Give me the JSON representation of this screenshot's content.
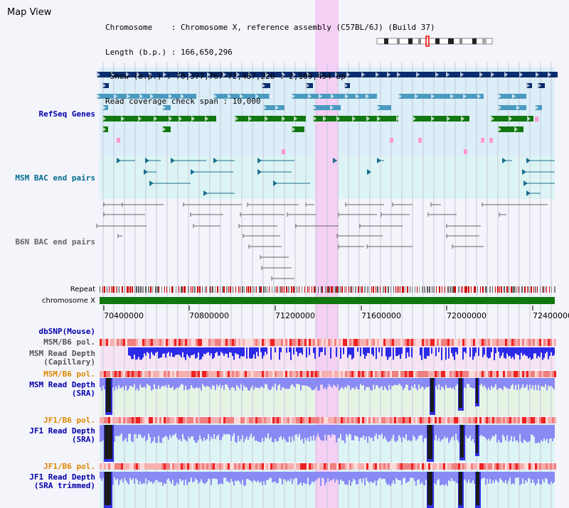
{
  "panel": {
    "title": "Map View"
  },
  "info": {
    "chromosome_line": "Chromosome    : Chromosome X, reference assembly (C57BL/6J) (Build 37)",
    "length_line": "Length (b.p.) : 166,650,296",
    "show_line": " Show (b.p.) : 70,377,767-72,487,220 : 2,109,454 bp",
    "coverage_line": "Read coverage check span : 10,000"
  },
  "tracks": {
    "refseq": "RefSeq Genes",
    "msm_bac": "MSM BAC end pairs",
    "b6n_bac": "B6N BAC end pairs",
    "repeat": "Repeat",
    "chromosome": "chromosome X",
    "dbsnp": "dbSNP(Mouse)",
    "msm_b6_pol_1": "MSM/B6 pol.",
    "msm_read_depth_cap_1": "MSM Read Depth",
    "msm_read_depth_cap_2": "(Capillary)",
    "msm_b6_pol_2": "MSM/B6 pol.",
    "msm_read_depth_sra_1": "MSM Read Depth",
    "msm_read_depth_sra_2": "(SRA)",
    "jf1_b6_pol_1": "JF1/B6 pol.",
    "jf1_read_depth_sra_1": "JF1 Read Depth",
    "jf1_read_depth_sra_2": "(SRA)",
    "jf1_b6_pol_2": "JF1/B6 pol.",
    "jf1_read_depth_trim_1": "JF1 Read Depth",
    "jf1_read_depth_trim_2": "(SRA trimmed)"
  },
  "axis": {
    "ticks": [
      "70400000",
      "70800000",
      "71200000",
      "71600000",
      "72000000",
      "72400000"
    ]
  },
  "colors": {
    "track_label_blue": "#0000aa",
    "track_label_orange": "#dd8800",
    "refseq_dark": "#0a2d6e",
    "refseq_mid": "#4a9ac0",
    "refseq_green": "#117711",
    "highlight": "#f5d0f5",
    "chromosome_bar": "#117711",
    "depth_blue": "#3030e0",
    "depth_light": "#8a8af5"
  }
}
